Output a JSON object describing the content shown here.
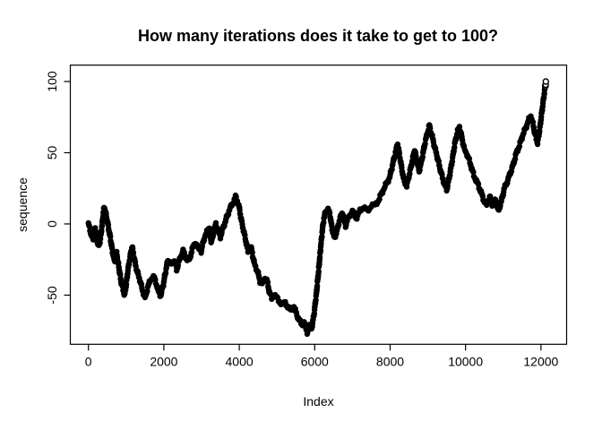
{
  "window": {
    "background": "#ffffff"
  },
  "chart_data": {
    "type": "scatter",
    "title": "How many iterations does it take to get to 100?",
    "xlabel": "Index",
    "ylabel": "sequence",
    "x_ticks": [
      0,
      2000,
      4000,
      6000,
      8000,
      10000,
      12000
    ],
    "y_ticks": [
      -50,
      0,
      50,
      100
    ],
    "xlim": [
      -480,
      12680
    ],
    "ylim": [
      -84.5,
      111.5
    ],
    "grid": false,
    "legend": "none",
    "point_style": "open-circle",
    "point_color": "#000000",
    "axis_color": "#000000",
    "n_points_approx": 12130,
    "final_value": 100,
    "series": [
      {
        "name": "sequence",
        "points": [
          [
            0,
            0
          ],
          [
            30,
            -3
          ],
          [
            60,
            -6
          ],
          [
            90,
            -9
          ],
          [
            120,
            -11
          ],
          [
            150,
            -7
          ],
          [
            180,
            -3
          ],
          [
            210,
            -7
          ],
          [
            240,
            -12
          ],
          [
            270,
            -16
          ],
          [
            300,
            -13
          ],
          [
            330,
            -8
          ],
          [
            360,
            -1
          ],
          [
            390,
            6
          ],
          [
            415,
            12
          ],
          [
            440,
            10
          ],
          [
            470,
            6
          ],
          [
            510,
            1
          ],
          [
            540,
            -4
          ],
          [
            570,
            -8
          ],
          [
            600,
            -13
          ],
          [
            630,
            -18
          ],
          [
            660,
            -22
          ],
          [
            690,
            -26
          ],
          [
            720,
            -23
          ],
          [
            750,
            -21
          ],
          [
            780,
            -26
          ],
          [
            810,
            -31
          ],
          [
            840,
            -36
          ],
          [
            870,
            -41
          ],
          [
            900,
            -44
          ],
          [
            930,
            -47
          ],
          [
            960,
            -50
          ],
          [
            1000,
            -43
          ],
          [
            1040,
            -34
          ],
          [
            1080,
            -27
          ],
          [
            1120,
            -21
          ],
          [
            1160,
            -16
          ],
          [
            1200,
            -22
          ],
          [
            1250,
            -29
          ],
          [
            1300,
            -34
          ],
          [
            1360,
            -39
          ],
          [
            1430,
            -46
          ],
          [
            1500,
            -52
          ],
          [
            1560,
            -46
          ],
          [
            1630,
            -40
          ],
          [
            1700,
            -37
          ],
          [
            1750,
            -38
          ],
          [
            1800,
            -42
          ],
          [
            1860,
            -48
          ],
          [
            1920,
            -50
          ],
          [
            1990,
            -42
          ],
          [
            2050,
            -33
          ],
          [
            2110,
            -25
          ],
          [
            2200,
            -29
          ],
          [
            2290,
            -25
          ],
          [
            2340,
            -32
          ],
          [
            2430,
            -24
          ],
          [
            2510,
            -19
          ],
          [
            2590,
            -24
          ],
          [
            2670,
            -26
          ],
          [
            2750,
            -18
          ],
          [
            2830,
            -13
          ],
          [
            2900,
            -17
          ],
          [
            2990,
            -19
          ],
          [
            3070,
            -10
          ],
          [
            3140,
            -6
          ],
          [
            3200,
            -2
          ],
          [
            3260,
            -13
          ],
          [
            3320,
            -6
          ],
          [
            3380,
            0
          ],
          [
            3440,
            -5
          ],
          [
            3500,
            -9
          ],
          [
            3580,
            -2
          ],
          [
            3660,
            4
          ],
          [
            3740,
            10
          ],
          [
            3820,
            14
          ],
          [
            3900,
            19
          ],
          [
            3980,
            14
          ],
          [
            4060,
            2
          ],
          [
            4150,
            -9
          ],
          [
            4230,
            -19
          ],
          [
            4310,
            -16
          ],
          [
            4400,
            -28
          ],
          [
            4480,
            -33
          ],
          [
            4550,
            -40
          ],
          [
            4610,
            -42
          ],
          [
            4680,
            -38
          ],
          [
            4730,
            -39
          ],
          [
            4800,
            -48
          ],
          [
            4860,
            -52
          ],
          [
            4930,
            -50
          ],
          [
            5000,
            -52
          ],
          [
            5060,
            -54
          ],
          [
            5130,
            -57
          ],
          [
            5220,
            -55
          ],
          [
            5300,
            -59
          ],
          [
            5380,
            -61
          ],
          [
            5450,
            -58
          ],
          [
            5530,
            -64
          ],
          [
            5600,
            -68
          ],
          [
            5660,
            -71
          ],
          [
            5720,
            -69
          ],
          [
            5800,
            -76
          ],
          [
            5860,
            -72
          ],
          [
            5920,
            -73
          ],
          [
            5980,
            -64
          ],
          [
            6040,
            -50
          ],
          [
            6100,
            -34
          ],
          [
            6160,
            -16
          ],
          [
            6220,
            0
          ],
          [
            6280,
            8
          ],
          [
            6340,
            11
          ],
          [
            6400,
            7
          ],
          [
            6460,
            -3
          ],
          [
            6520,
            -10
          ],
          [
            6590,
            -5
          ],
          [
            6660,
            3
          ],
          [
            6740,
            8
          ],
          [
            6820,
            -1
          ],
          [
            6900,
            5
          ],
          [
            7000,
            9
          ],
          [
            7100,
            4
          ],
          [
            7200,
            9
          ],
          [
            7300,
            12
          ],
          [
            7400,
            9
          ],
          [
            7500,
            13
          ],
          [
            7600,
            13
          ],
          [
            7700,
            17
          ],
          [
            7800,
            23
          ],
          [
            7900,
            28
          ],
          [
            7990,
            33
          ],
          [
            8070,
            42
          ],
          [
            8140,
            50
          ],
          [
            8200,
            56
          ],
          [
            8270,
            45
          ],
          [
            8360,
            31
          ],
          [
            8440,
            27
          ],
          [
            8520,
            36
          ],
          [
            8600,
            46
          ],
          [
            8650,
            52
          ],
          [
            8710,
            44
          ],
          [
            8770,
            37
          ],
          [
            8840,
            45
          ],
          [
            8910,
            55
          ],
          [
            8980,
            63
          ],
          [
            9040,
            69
          ],
          [
            9110,
            62
          ],
          [
            9180,
            54
          ],
          [
            9260,
            46
          ],
          [
            9350,
            36
          ],
          [
            9440,
            28
          ],
          [
            9500,
            24
          ],
          [
            9570,
            33
          ],
          [
            9650,
            45
          ],
          [
            9720,
            57
          ],
          [
            9790,
            65
          ],
          [
            9840,
            68
          ],
          [
            9900,
            61
          ],
          [
            9960,
            53
          ],
          [
            10040,
            49
          ],
          [
            10130,
            42
          ],
          [
            10220,
            34
          ],
          [
            10310,
            29
          ],
          [
            10400,
            23
          ],
          [
            10480,
            17
          ],
          [
            10560,
            13
          ],
          [
            10640,
            19
          ],
          [
            10720,
            13
          ],
          [
            10800,
            17
          ],
          [
            10870,
            9
          ],
          [
            10950,
            16
          ],
          [
            11030,
            25
          ],
          [
            11110,
            30
          ],
          [
            11190,
            36
          ],
          [
            11270,
            42
          ],
          [
            11350,
            50
          ],
          [
            11430,
            55
          ],
          [
            11510,
            62
          ],
          [
            11590,
            67
          ],
          [
            11660,
            72
          ],
          [
            11730,
            76
          ],
          [
            11790,
            70
          ],
          [
            11850,
            62
          ],
          [
            11910,
            57
          ],
          [
            11970,
            67
          ],
          [
            12030,
            80
          ],
          [
            12080,
            90
          ],
          [
            12130,
            100
          ]
        ]
      }
    ]
  }
}
